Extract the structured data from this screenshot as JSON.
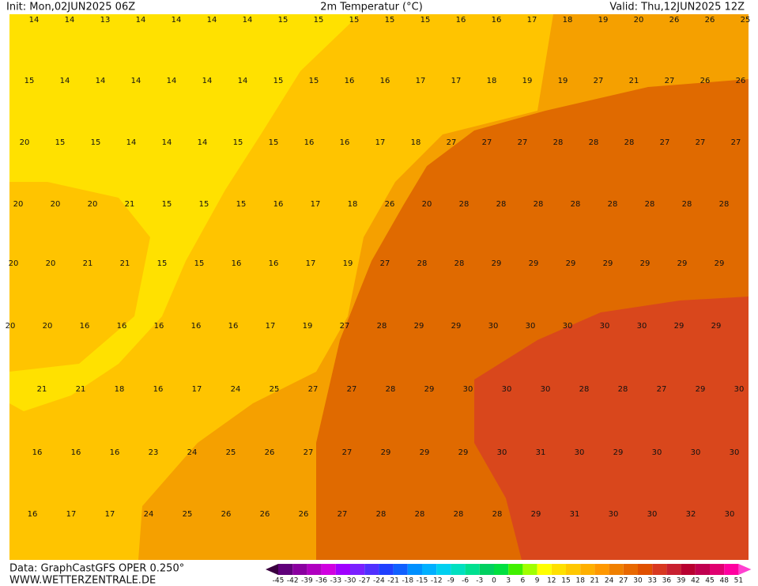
{
  "header": {
    "init": "Init: Mon,02JUN2025 06Z",
    "title": "2m Temperatur (°C)",
    "valid": "Valid: Thu,12JUN2025 12Z"
  },
  "footer": {
    "source": "Data: GraphCastGFS OPER 0.250°",
    "site": "WWW.WETTERZENTRALE.DE"
  },
  "rows": [
    [
      14,
      14,
      13,
      14,
      14,
      14,
      14,
      15,
      15,
      15,
      15,
      15,
      16,
      16,
      17,
      18,
      19,
      20,
      26,
      26,
      25
    ],
    [
      15,
      14,
      14,
      14,
      14,
      14,
      14,
      15,
      15,
      16,
      16,
      17,
      17,
      18,
      19,
      19,
      27,
      21,
      27,
      26,
      26
    ],
    [
      20,
      15,
      15,
      14,
      14,
      14,
      15,
      15,
      16,
      16,
      17,
      18,
      27,
      27,
      27,
      28,
      28,
      28,
      27,
      27,
      27
    ],
    [
      20,
      20,
      20,
      21,
      15,
      15,
      15,
      16,
      17,
      18,
      26,
      20,
      28,
      28,
      28,
      28,
      28,
      28,
      28,
      28
    ],
    [
      20,
      20,
      21,
      21,
      15,
      15,
      16,
      16,
      17,
      19,
      27,
      28,
      28,
      29,
      29,
      29,
      29,
      29,
      29,
      29
    ],
    [
      20,
      20,
      16,
      16,
      16,
      16,
      16,
      17,
      19,
      27,
      28,
      29,
      29,
      30,
      30,
      30,
      30,
      30,
      29,
      29
    ],
    [
      21,
      21,
      18,
      16,
      17,
      24,
      25,
      27,
      27,
      28,
      29,
      30,
      30,
      30,
      28,
      28,
      27,
      29,
      30
    ],
    [
      16,
      16,
      16,
      23,
      24,
      25,
      26,
      27,
      27,
      29,
      29,
      29,
      30,
      31,
      30,
      29,
      30,
      30,
      30
    ],
    [
      16,
      17,
      17,
      24,
      25,
      26,
      26,
      26,
      27,
      28,
      28,
      28,
      28,
      29,
      31,
      30,
      30,
      32,
      30
    ]
  ],
  "colorbar": {
    "labels": [
      -45,
      -42,
      -39,
      -36,
      -33,
      -30,
      -27,
      -24,
      -21,
      -18,
      -15,
      -12,
      -9,
      -6,
      -3,
      0,
      3,
      6,
      9,
      12,
      15,
      18,
      21,
      24,
      27,
      30,
      33,
      36,
      39,
      42,
      45,
      48,
      51
    ],
    "colors": [
      "#3a0040",
      "#60007a",
      "#8a00a0",
      "#b000c0",
      "#d000e0",
      "#a000ff",
      "#7a20ff",
      "#5030ff",
      "#2040ff",
      "#1060ff",
      "#0090ff",
      "#00b0ff",
      "#00d0f0",
      "#00e0c0",
      "#00e090",
      "#00d060",
      "#00e040",
      "#40f000",
      "#a0ff00",
      "#ffff00",
      "#ffe000",
      "#ffc800",
      "#ffb000",
      "#ff9800",
      "#f08000",
      "#e86800",
      "#e05000",
      "#d83820",
      "#c82030",
      "#b80030",
      "#c00050",
      "#e00070",
      "#ff00a0",
      "#ff40d0"
    ]
  }
}
